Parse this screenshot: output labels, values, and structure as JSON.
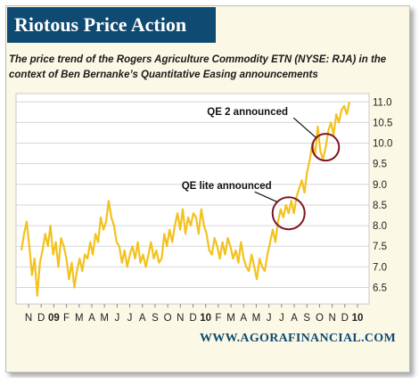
{
  "header": {
    "title": "Riotous Price Action",
    "subtitle": "The price trend of the Rogers Agriculture Commodity ETN (NYSE: RJA) in the context of Ben Bernanke’s Quantitative Easing announcements"
  },
  "footer": {
    "source": "WWW.AGORAFINANCIAL.COM"
  },
  "colors": {
    "line": "#f3c21d",
    "circle": "#7c1522",
    "title_bg": "#0f4a72",
    "plot_bg": "#ffffff",
    "grid": "#d6d6d6"
  },
  "chart_data": {
    "type": "line",
    "title": "Riotous Price Action",
    "xlabel": "",
    "ylabel": "",
    "ylim": [
      6.1,
      11.2
    ],
    "y_ticks": [
      "6.5",
      "7.0",
      "7.5",
      "8.0",
      "8.5",
      "9.0",
      "9.5",
      "10.0",
      "10.5",
      "11.0"
    ],
    "x_ticks": [
      "N",
      "D",
      "09",
      "F",
      "M",
      "A",
      "M",
      "J",
      "J",
      "A",
      "S",
      "O",
      "N",
      "D",
      "10",
      "F",
      "M",
      "A",
      "M",
      "J",
      "J",
      "A",
      "S",
      "O",
      "N",
      "D",
      "10"
    ],
    "grid": true,
    "series": [
      {
        "values": [
          7.4,
          7.8,
          8.1,
          7.5,
          6.8,
          7.2,
          6.3,
          7.1,
          7.4,
          7.8,
          7.5,
          8.0,
          7.3,
          7.6,
          7.0,
          7.7,
          7.5,
          7.2,
          6.7,
          7.1,
          6.5,
          6.9,
          7.2,
          6.9,
          7.3,
          7.2,
          7.6,
          7.3,
          7.8,
          7.6,
          8.2,
          7.9,
          8.1,
          8.6,
          8.2,
          8.0,
          7.6,
          7.5,
          7.1,
          7.4,
          7.0,
          7.3,
          7.5,
          7.2,
          7.6,
          7.1,
          7.3,
          7.0,
          7.3,
          7.6,
          7.2,
          7.4,
          7.1,
          7.2,
          7.8,
          7.5,
          7.9,
          7.6,
          8.0,
          8.3,
          7.9,
          8.4,
          7.8,
          8.2,
          8.0,
          8.3,
          8.2,
          7.8,
          8.4,
          8.0,
          7.8,
          7.4,
          7.3,
          7.7,
          7.5,
          7.2,
          7.6,
          7.3,
          7.7,
          7.5,
          7.2,
          7.4,
          7.1,
          7.6,
          7.2,
          7.0,
          6.9,
          7.3,
          7.0,
          6.7,
          7.2,
          7.0,
          6.9,
          7.3,
          7.6,
          7.9,
          7.6,
          8.1,
          8.4,
          8.2,
          8.5,
          8.3,
          8.6,
          8.3,
          8.7,
          8.9,
          9.1,
          8.8,
          9.3,
          9.6,
          10.0,
          9.7,
          10.4,
          9.8,
          9.6,
          9.9,
          10.3,
          10.5,
          10.2,
          10.7,
          10.5,
          10.8,
          10.9,
          10.7,
          11.0
        ]
      }
    ],
    "annotations": [
      {
        "text": "QE lite announced",
        "at_x": 101
      },
      {
        "text": "QE 2 announced",
        "at_x": 115
      }
    ]
  }
}
